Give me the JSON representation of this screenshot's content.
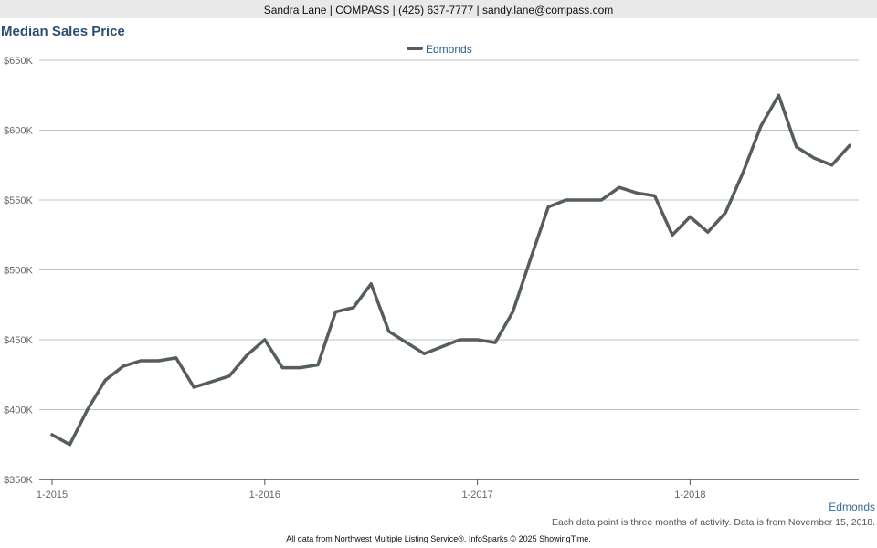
{
  "header": {
    "contact": "Sandra Lane | COMPASS | (425) 637-7777 | sandy.lane@compass.com"
  },
  "footer": {
    "series_label": "Edmonds",
    "note": "Each data point is three months of activity. Data is from November 15, 2018.",
    "source": "All data from Northwest Multiple Listing Service®. InfoSparks © 2025 ShowingTime."
  },
  "chart_data": {
    "type": "line",
    "title": "Median Sales Price",
    "xlabel": "",
    "ylabel": "",
    "legend_position": "top-center",
    "grid": true,
    "ylim": [
      350000,
      650000
    ],
    "xlim": [
      "2015-01",
      "2018-10"
    ],
    "y_ticks": [
      {
        "value": 350000,
        "label": "$350K"
      },
      {
        "value": 400000,
        "label": "$400K"
      },
      {
        "value": 450000,
        "label": "$450K"
      },
      {
        "value": 500000,
        "label": "$500K"
      },
      {
        "value": 550000,
        "label": "$550K"
      },
      {
        "value": 600000,
        "label": "$600K"
      },
      {
        "value": 650000,
        "label": "$650K"
      }
    ],
    "x_ticks": [
      {
        "value": "2015-01",
        "label": "1-2015"
      },
      {
        "value": "2016-01",
        "label": "1-2016"
      },
      {
        "value": "2017-01",
        "label": "1-2017"
      },
      {
        "value": "2018-01",
        "label": "1-2018"
      }
    ],
    "colors": {
      "series": "#555d5d",
      "grid": "#bfbfbf",
      "axis": "#555555",
      "tick_text": "#666666",
      "legend_text": "#2b5d8c"
    },
    "x": [
      "2015-01",
      "2015-02",
      "2015-03",
      "2015-04",
      "2015-05",
      "2015-06",
      "2015-07",
      "2015-08",
      "2015-09",
      "2015-10",
      "2015-11",
      "2015-12",
      "2016-01",
      "2016-02",
      "2016-03",
      "2016-04",
      "2016-05",
      "2016-06",
      "2016-07",
      "2016-08",
      "2016-09",
      "2016-10",
      "2016-11",
      "2016-12",
      "2017-01",
      "2017-02",
      "2017-03",
      "2017-04",
      "2017-05",
      "2017-06",
      "2017-07",
      "2017-08",
      "2017-09",
      "2017-10",
      "2017-11",
      "2017-12",
      "2018-01",
      "2018-02",
      "2018-03",
      "2018-04",
      "2018-05",
      "2018-06",
      "2018-07",
      "2018-08",
      "2018-09",
      "2018-10"
    ],
    "series": [
      {
        "name": "Edmonds",
        "values": [
          382000,
          375000,
          400000,
          421000,
          431000,
          435000,
          435000,
          437000,
          416000,
          420000,
          424000,
          439000,
          450000,
          430000,
          430000,
          432000,
          470000,
          473000,
          490000,
          456000,
          448000,
          440000,
          445000,
          450000,
          450000,
          448000,
          470000,
          508000,
          545000,
          550000,
          550000,
          550000,
          559000,
          555000,
          553000,
          525000,
          538000,
          527000,
          541000,
          570000,
          603000,
          625000,
          588000,
          580000,
          575000,
          589000
        ]
      }
    ]
  }
}
